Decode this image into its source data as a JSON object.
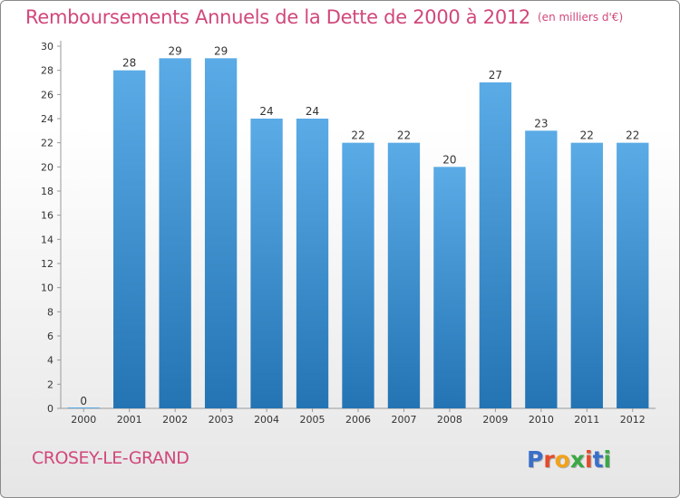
{
  "header": {
    "title": "Remboursements Annuels de la Dette de 2000 à 2012",
    "subtitle": "(en milliers d'€)"
  },
  "footer": {
    "commune": "CROSEY-LE-GRAND",
    "logo": "Proxiti"
  },
  "colors": {
    "title": "#d1487a",
    "bar_top": "#5aabe6",
    "bar_bottom": "#2474b4",
    "logo_letters": [
      "#3a6fc9",
      "#e44b2a",
      "#f2a21a",
      "#3aa845",
      "#e44b2a",
      "#3a6fc9",
      "#3aa845"
    ]
  },
  "chart_data": {
    "type": "bar",
    "categories": [
      "2000",
      "2001",
      "2002",
      "2003",
      "2004",
      "2005",
      "2006",
      "2007",
      "2008",
      "2009",
      "2010",
      "2011",
      "2012"
    ],
    "values": [
      0,
      28,
      29,
      29,
      24,
      24,
      22,
      22,
      20,
      27,
      23,
      22,
      22
    ],
    "title": "Remboursements Annuels de la Dette de 2000 à 2012",
    "subtitle": "(en milliers d'€)",
    "ylim": [
      0,
      30
    ],
    "yticks": [
      0,
      2,
      4,
      6,
      8,
      10,
      12,
      14,
      16,
      18,
      20,
      22,
      24,
      26,
      28,
      30
    ],
    "grid": false,
    "data_labels": true
  }
}
